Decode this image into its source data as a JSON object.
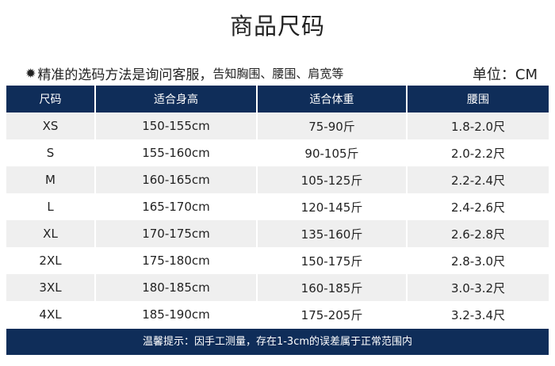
{
  "title": "商品尺码",
  "note": {
    "icon": "sun-icon",
    "main": "精准的选码方法是询问客服，",
    "detail": "告知胸围、腰围、肩宽等"
  },
  "unit": "单位：CM",
  "table": {
    "headers": [
      "尺码",
      "适合身高",
      "适合体重",
      "腰围"
    ],
    "rows": [
      [
        "XS",
        "150-155cm",
        "75-90斤",
        "1.8-2.0尺"
      ],
      [
        "S",
        "155-160cm",
        "90-105斤",
        "2.0-2.2尺"
      ],
      [
        "M",
        "160-165cm",
        "105-125斤",
        "2.2-2.4尺"
      ],
      [
        "L",
        "165-170cm",
        "120-145斤",
        "2.4-2.6尺"
      ],
      [
        "XL",
        "170-175cm",
        "135-160斤",
        "2.6-2.8尺"
      ],
      [
        "2XL",
        "175-180cm",
        "150-175斤",
        "2.8-3.0尺"
      ],
      [
        "3XL",
        "180-185cm",
        "160-185斤",
        "3.0-3.2尺"
      ],
      [
        "4XL",
        "185-190cm",
        "175-205斤",
        "3.2-3.4尺"
      ]
    ]
  },
  "footer": "温馨提示：因手工测量，存在1-3cm的误差属于正常范围内",
  "colors": {
    "header": "#0f2d59",
    "stripe": "#efefef"
  }
}
